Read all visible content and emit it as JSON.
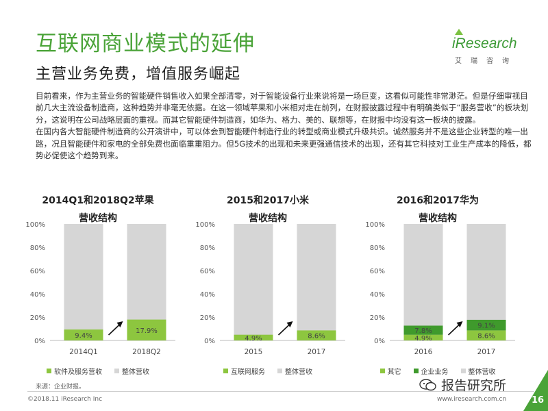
{
  "header": {
    "title": "互联网商业模式的延伸",
    "subtitle": "主营业务免费，增值服务崛起"
  },
  "logo": {
    "word": "iResearch",
    "cn": "艾瑞咨询"
  },
  "body": {
    "paragraphs": [
      "目前看来，作为主营业务的智能硬件销售收入如果全部清零，对于智能设备行业来说将是一场巨变，这看似可能性非常渺茫。但是仔细审视目前几大主流设备制造商，这种趋势并非毫无依据。在这一领域苹果和小米相对走在前列，在财报披露过程中有明确类似于“服务营收”的板块划分，这说明在公司战略层面的重视。而其它智能硬件制造商，如华为、格力、美的、联想等，在财报中均没有这一板块的披露。",
      "在国内各大智能硬件制造商的公开演讲中，可以体会到智能硬件制造行业的转型或商业模式升级共识。诚然服务并不是这些企业转型的唯一出路，况且智能硬件和家电的全部免费也面临重重阻力。但5G技术的出现和未来更强通信技术的出现，还有其它科技对工业生产成本的降低，都势必促使这个趋势到来。"
    ]
  },
  "colors": {
    "accent": "#4aa338",
    "gray_bar": "#d6d6d6",
    "green_light": "#8dc63f",
    "green_mid": "#56b432",
    "green_dark": "#3f9a2c"
  },
  "chart_data": [
    {
      "type": "bar",
      "title": [
        "2014Q1和2018Q2苹果",
        "营收结构"
      ],
      "categories": [
        "2014Q1",
        "2018Q2"
      ],
      "ylim": [
        0,
        100
      ],
      "yticks": [
        "0%",
        "20%",
        "40%",
        "60%",
        "80%",
        "100%"
      ],
      "series": [
        {
          "name": "软件及服务营收",
          "values": [
            9.4,
            17.9
          ],
          "labels": [
            "9.4%",
            "17.9%"
          ],
          "color": "#8dc63f"
        },
        {
          "name": "整体营收",
          "values": [
            100,
            100
          ],
          "color": "#d6d6d6"
        }
      ]
    },
    {
      "type": "bar",
      "title": [
        "2015和2017小米",
        "营收结构"
      ],
      "categories": [
        "2015",
        "2017"
      ],
      "ylim": [
        0,
        100
      ],
      "yticks": [
        "0%",
        "20%",
        "40%",
        "60%",
        "80%",
        "100%"
      ],
      "series": [
        {
          "name": "互联网服务",
          "values": [
            4.9,
            8.6
          ],
          "labels": [
            "4.9%",
            "8.6%"
          ],
          "color": "#8dc63f"
        },
        {
          "name": "整体营收",
          "values": [
            100,
            100
          ],
          "color": "#d6d6d6"
        }
      ]
    },
    {
      "type": "bar",
      "title": [
        "2016和2017华为",
        "营收结构"
      ],
      "categories": [
        "2016",
        "2017"
      ],
      "ylim": [
        0,
        100
      ],
      "yticks": [
        "0%",
        "20%",
        "40%",
        "60%",
        "80%",
        "100%"
      ],
      "series": [
        {
          "name": "其它",
          "values": [
            4.9,
            8.6
          ],
          "labels": [
            "4.9%",
            "8.6%"
          ],
          "color": "#8dc63f"
        },
        {
          "name": "企业业务",
          "values": [
            7.8,
            9.1
          ],
          "labels": [
            "7.8%",
            "9.1%"
          ],
          "color": "#3f9a2c"
        },
        {
          "name": "整体营收",
          "values": [
            100,
            100
          ],
          "color": "#d6d6d6"
        }
      ]
    }
  ],
  "footer": {
    "source": "来源：企业财报。",
    "copyright": "©2018.11 iResearch Inc",
    "site": "www.iresearch.com.cn",
    "page": "16",
    "wechat": "报告研究所"
  }
}
